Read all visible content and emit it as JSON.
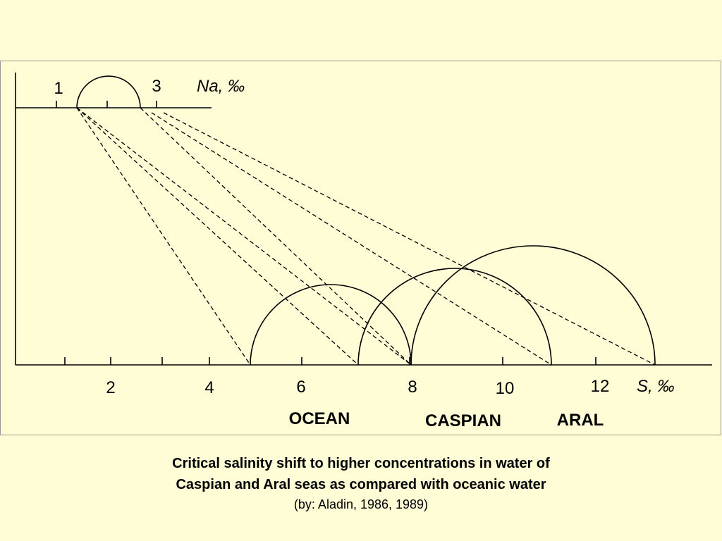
{
  "diagram": {
    "top_axis": {
      "ticks": [
        1,
        3
      ],
      "label": "Na, ‰"
    },
    "bottom_axis": {
      "ticks": [
        2,
        4,
        6,
        8,
        10,
        12
      ],
      "label": "S, ‰"
    },
    "waters": [
      "OCEAN",
      "CASPIAN",
      "ARAL"
    ]
  },
  "caption": {
    "lines": [
      "Critical salinity shift to higher concentrations in water of",
      "Caspian and Aral seas as compared with oceanic water"
    ],
    "source": "(by: Aladin, 1986, 1989)"
  }
}
